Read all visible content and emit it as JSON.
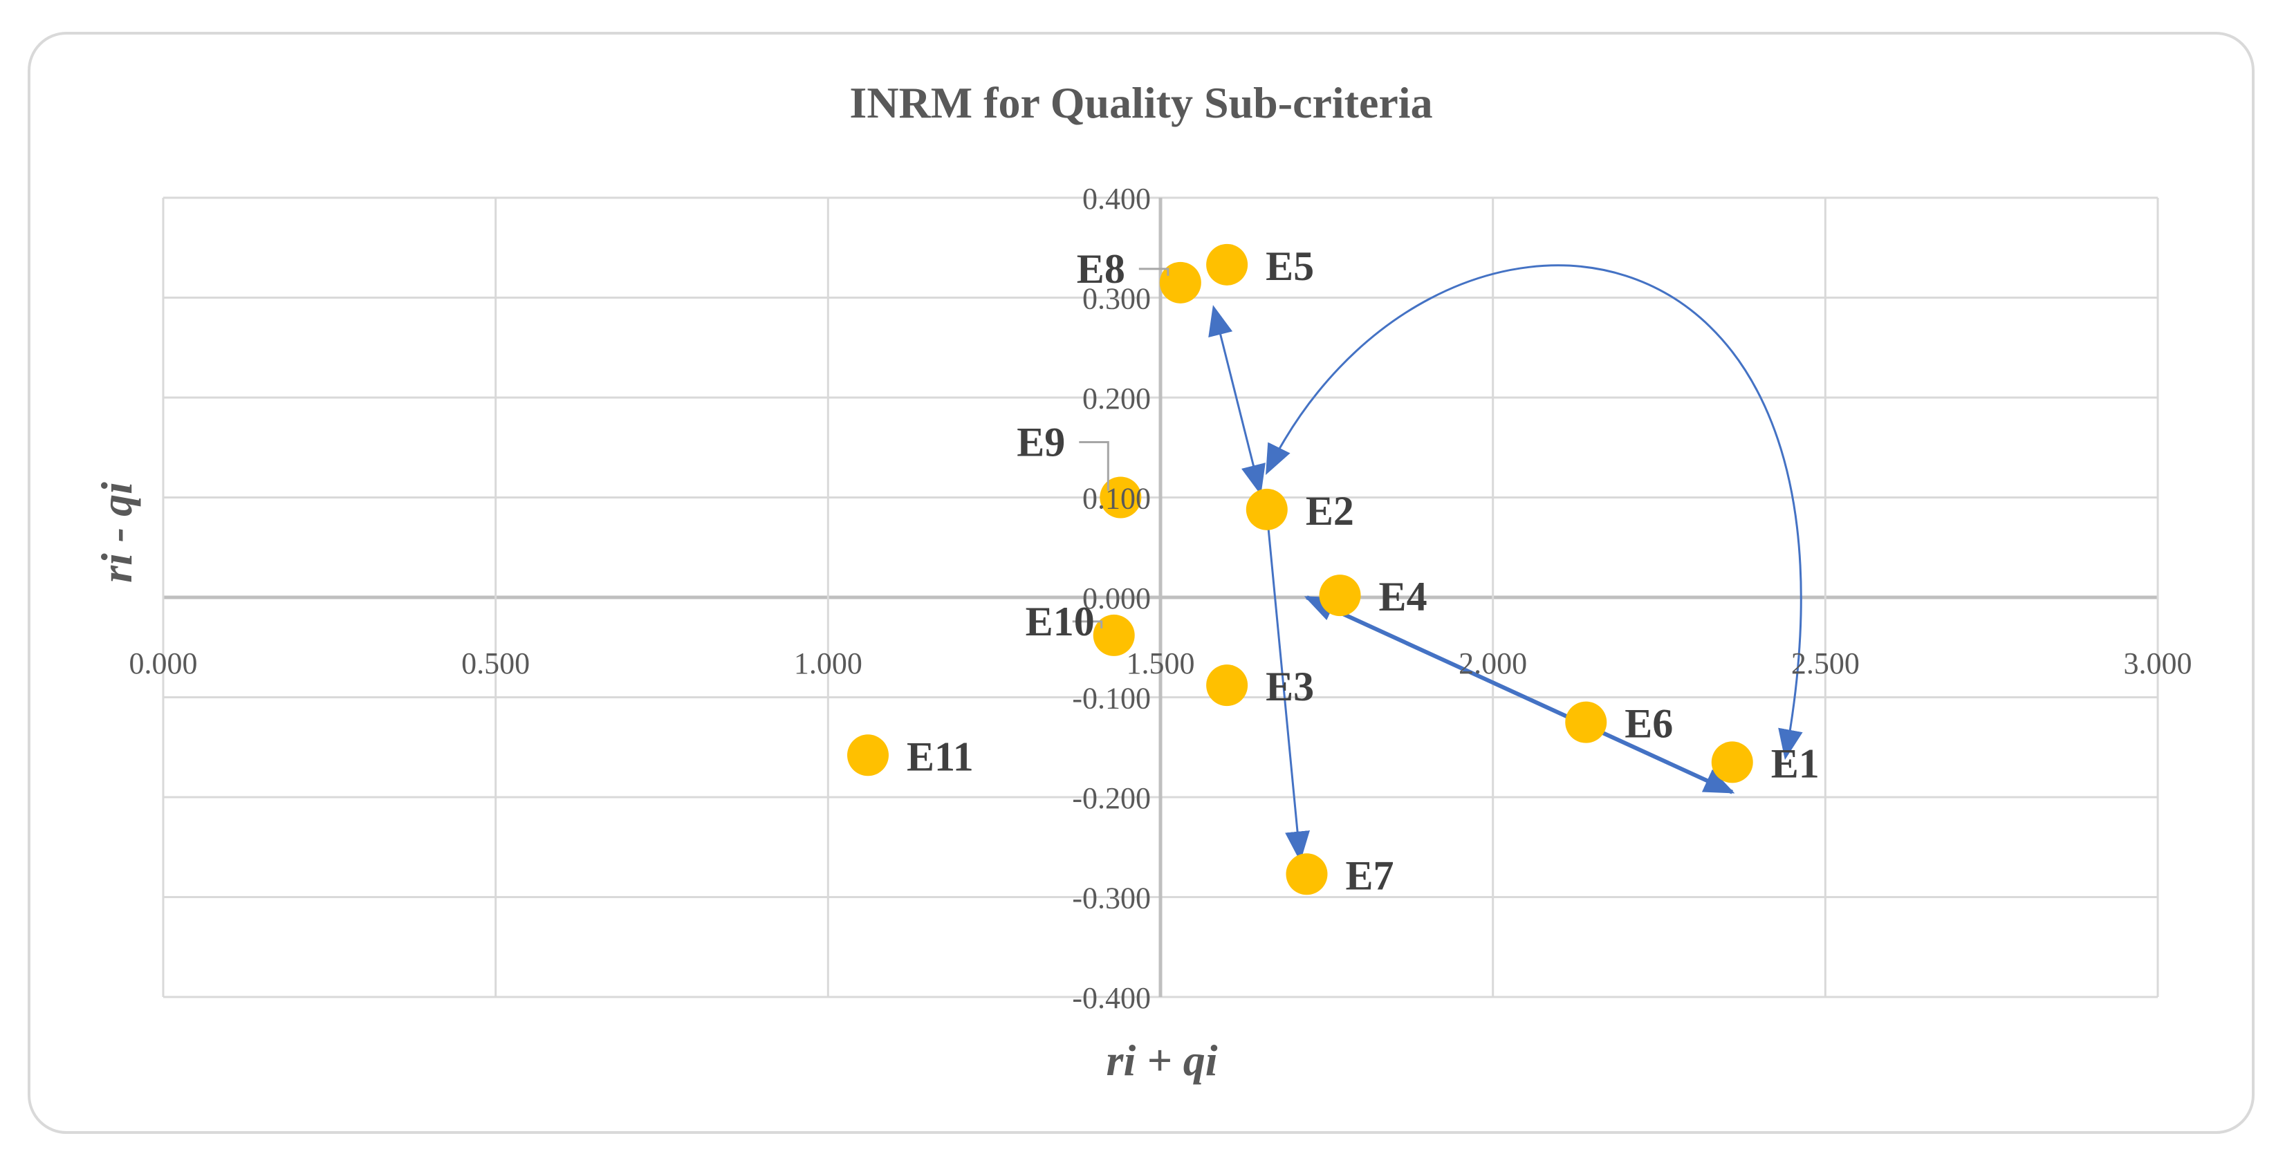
{
  "chart_data": {
    "type": "scatter",
    "title": "INRM for Quality  Sub-criteria",
    "xlabel": "ri + qi",
    "ylabel": "ri - qi",
    "xlim": [
      0,
      3
    ],
    "ylim": [
      -0.4,
      0.4
    ],
    "x_ticks": [
      0,
      0.5,
      1,
      1.5,
      2,
      2.5,
      3
    ],
    "x_tick_labels": [
      "0.000",
      "0.500",
      "1.000",
      "1.500",
      "2.000",
      "2.500",
      "3.000"
    ],
    "y_ticks": [
      0.4,
      0.3,
      0.2,
      0.1,
      0,
      -0.1,
      -0.2,
      -0.3,
      -0.4
    ],
    "y_tick_labels": [
      "0.400",
      "0.300",
      "0.200",
      "0.100",
      "0.000",
      "-0.100",
      "-0.200",
      "-0.300",
      "-0.400"
    ],
    "grid": true,
    "point_color": "#FFC000",
    "arrow_color": "#4472C4",
    "points": [
      {
        "label": "E1",
        "x": 2.36,
        "y": -0.165
      },
      {
        "label": "E2",
        "x": 1.66,
        "y": 0.088
      },
      {
        "label": "E3",
        "x": 1.6,
        "y": -0.088
      },
      {
        "label": "E4",
        "x": 1.77,
        "y": 0.002
      },
      {
        "label": "E5",
        "x": 1.6,
        "y": 0.333
      },
      {
        "label": "E6",
        "x": 2.14,
        "y": -0.125
      },
      {
        "label": "E7",
        "x": 1.72,
        "y": -0.277
      },
      {
        "label": "E8",
        "x": 1.53,
        "y": 0.315
      },
      {
        "label": "E9",
        "x": 1.44,
        "y": 0.1
      },
      {
        "label": "E10",
        "x": 1.43,
        "y": -0.038
      },
      {
        "label": "E11",
        "x": 1.06,
        "y": -0.158
      }
    ],
    "arrows": [
      {
        "from": [
          1.58,
          0.29
        ],
        "to": [
          1.65,
          0.105
        ],
        "double": true,
        "curved": false
      },
      {
        "from": [
          1.66,
          0.085
        ],
        "to": [
          1.71,
          -0.262
        ],
        "double": false,
        "curved": false
      },
      {
        "from": [
          1.72,
          0.0
        ],
        "to": [
          2.36,
          -0.195
        ],
        "double": true,
        "curved": false
      },
      {
        "from": [
          2.44,
          -0.16
        ],
        "to": [
          1.66,
          0.125
        ],
        "double": true,
        "curved": true,
        "via": [
          [
            2.6,
            0.42
          ],
          [
            1.9,
            0.45
          ]
        ]
      }
    ]
  }
}
